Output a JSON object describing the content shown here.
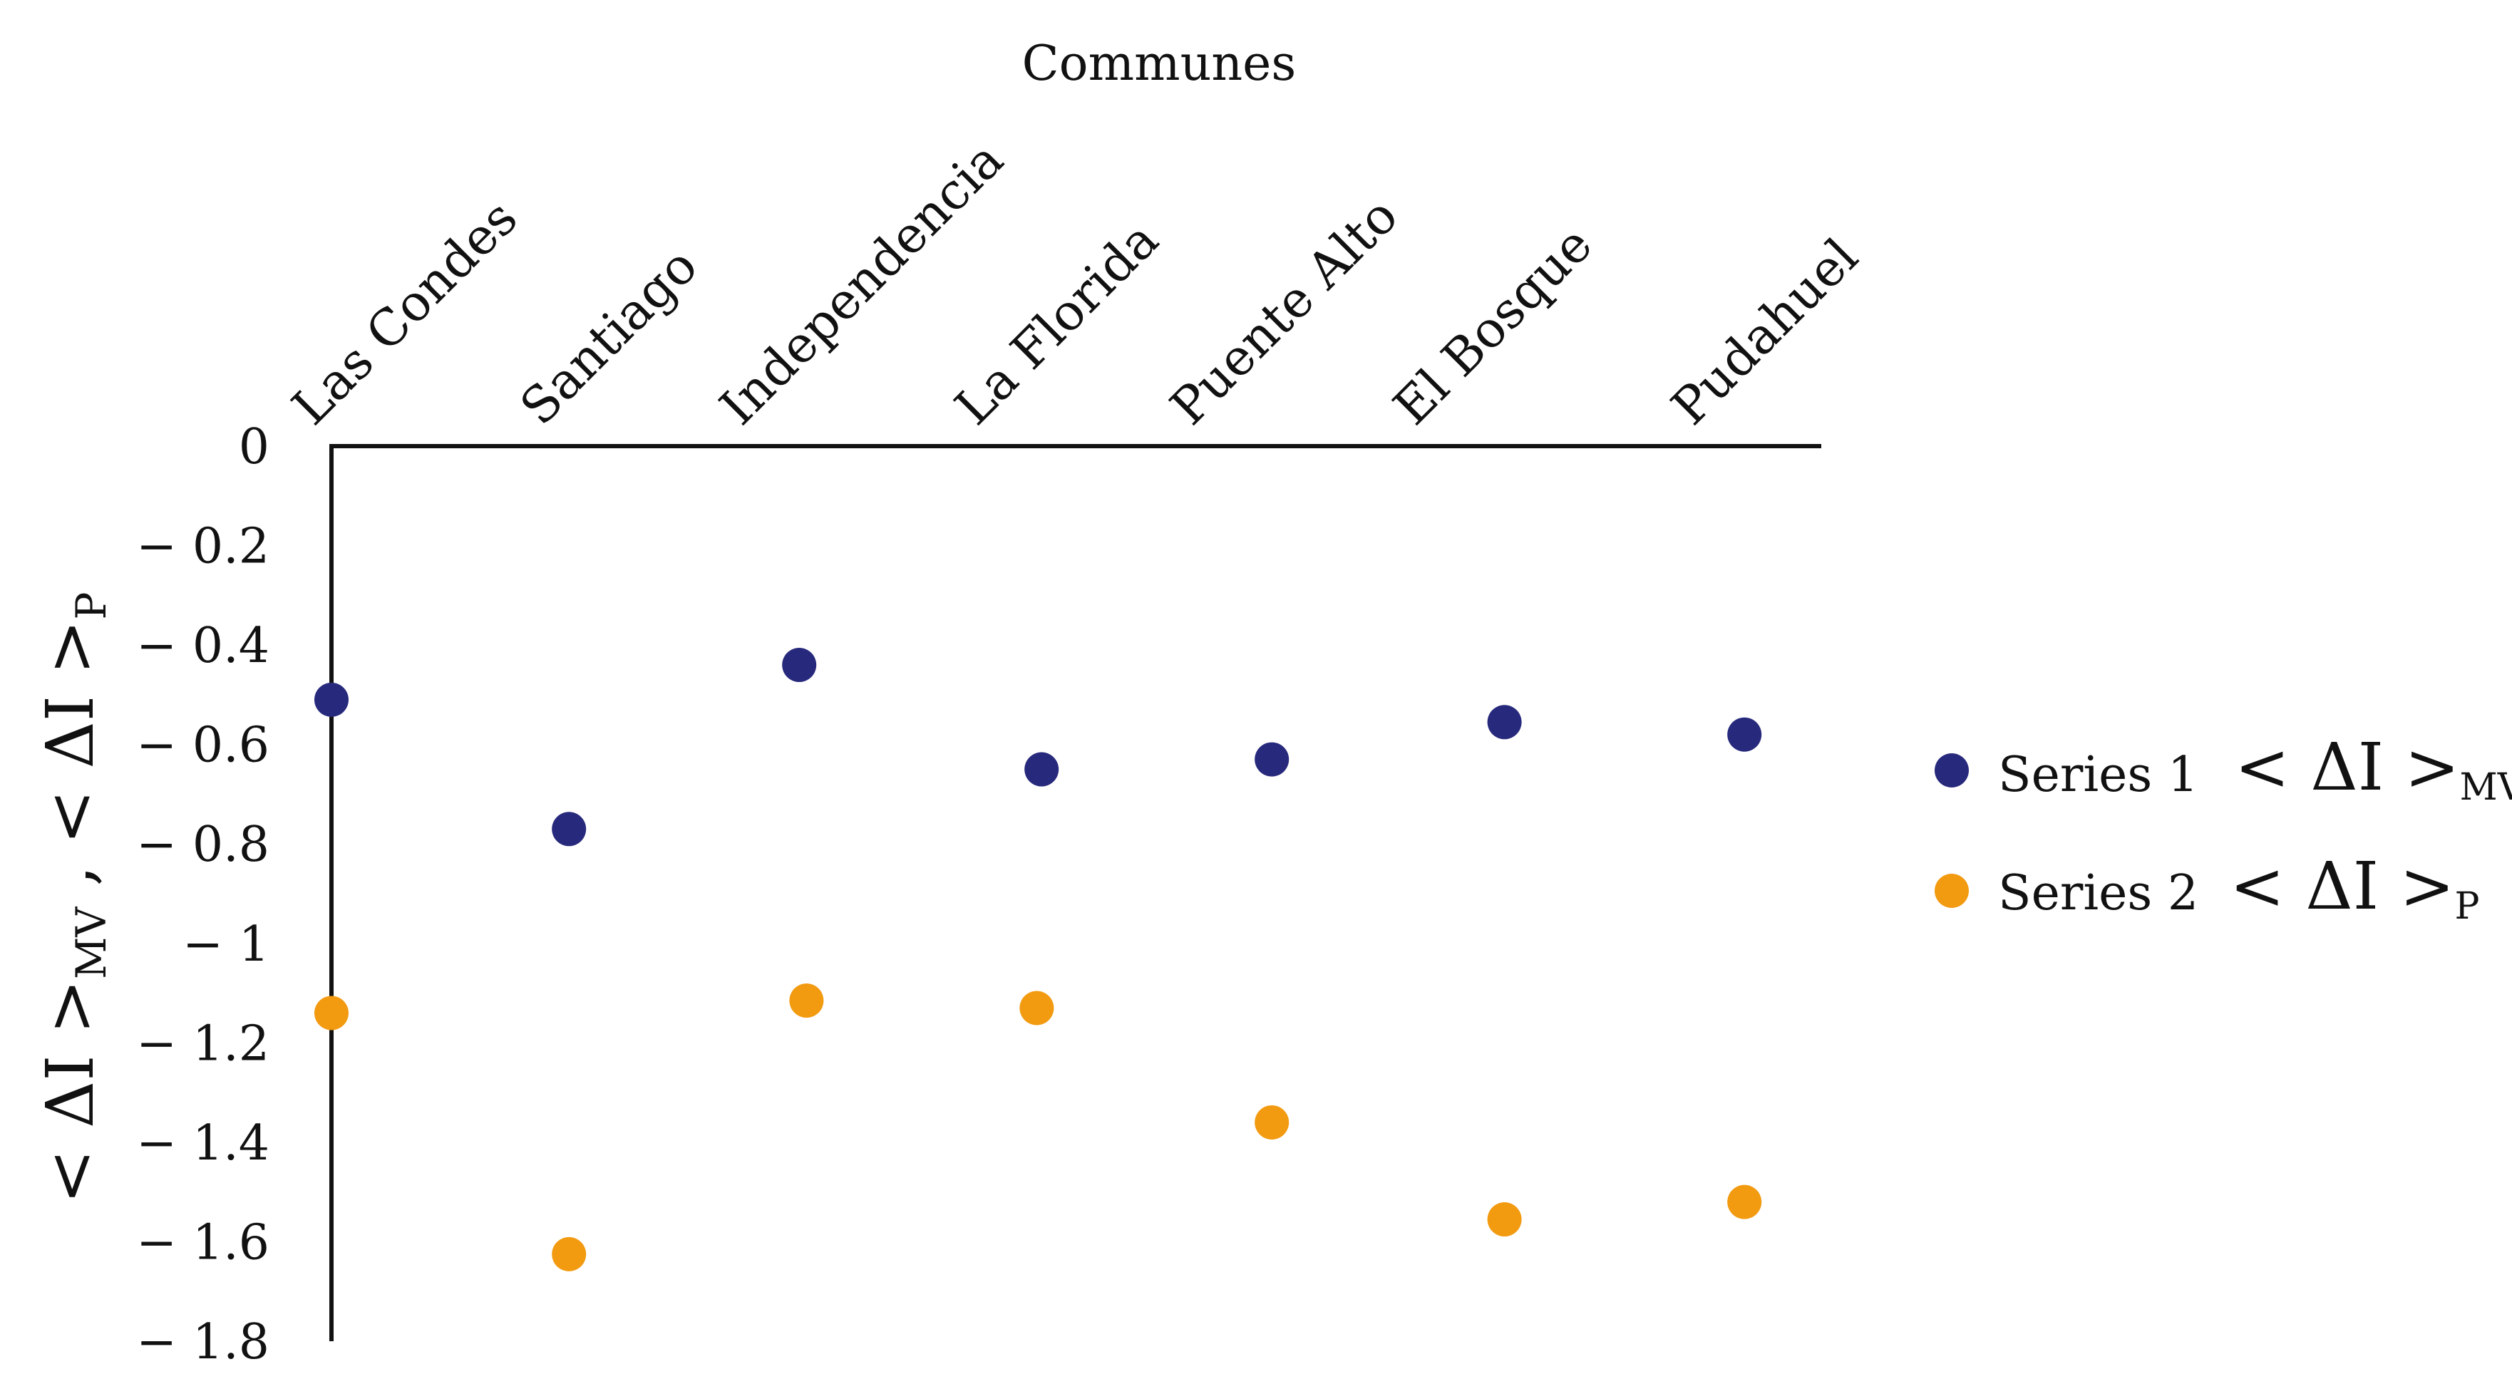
{
  "chart_data": {
    "type": "scatter",
    "title": "Communes",
    "xlabel": "Communes",
    "ylabel": {
      "open": "< ΔI >",
      "sub1": "MV",
      "separator": " , ",
      "open2": "< ΔI >",
      "sub2": "P"
    },
    "categories": [
      "Las Condes",
      "Santiago",
      "Independencia",
      "La Florida",
      "Puente Alto",
      "El Bosque",
      "Pudahuel"
    ],
    "ylim": [
      -1.8,
      0
    ],
    "yticks": [
      0,
      -0.2,
      -0.4,
      -0.6,
      -0.8,
      -1,
      -1.2,
      -1.4,
      -1.6,
      -1.8
    ],
    "ytick_labels": [
      "0",
      "− 0.2",
      "− 0.4",
      "− 0.6",
      "− 0.8",
      "− 1",
      "− 1.2",
      "− 1.4",
      "− 1.6",
      "− 1.8"
    ],
    "series": [
      {
        "name": "Series 1",
        "legend_symbol": "< ΔI >",
        "legend_sub": "MV",
        "color": "#27297c",
        "x": [
          0.0,
          0.98,
          1.93,
          2.93,
          3.88,
          4.84,
          5.83
        ],
        "values": [
          -0.51,
          -0.77,
          -0.44,
          -0.65,
          -0.63,
          -0.555,
          -0.58
        ]
      },
      {
        "name": "Series 2",
        "legend_symbol": "< ΔI >",
        "legend_sub": "P",
        "color": "#f29a10",
        "x": [
          0.0,
          0.98,
          1.96,
          2.91,
          3.88,
          4.84,
          5.83
        ],
        "values": [
          -1.14,
          -1.625,
          -1.115,
          -1.13,
          -1.36,
          -1.555,
          -1.52
        ]
      }
    ]
  }
}
